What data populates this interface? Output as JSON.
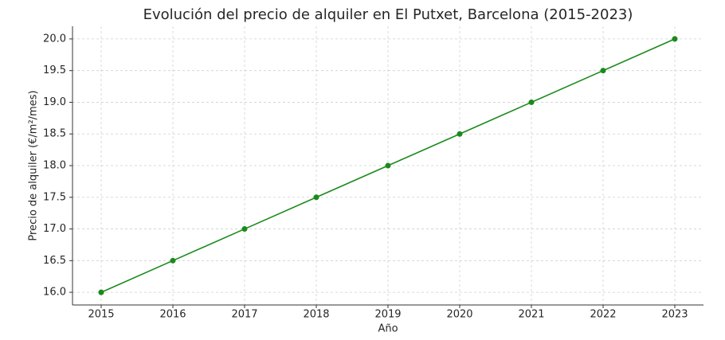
{
  "chart_data": {
    "type": "line",
    "title": "Evolución del precio de alquiler en El Putxet, Barcelona (2015-2023)",
    "x_label": "Año",
    "y_label": "Precio de alquiler (€/m²/mes)",
    "x": [
      2015,
      2016,
      2017,
      2018,
      2019,
      2020,
      2021,
      2022,
      2023
    ],
    "series": [
      {
        "color": "#1a8a1a",
        "values": [
          16.0,
          16.5,
          17.0,
          17.5,
          18.0,
          18.5,
          19.0,
          19.5,
          20.0
        ]
      }
    ],
    "xlim": [
      2014.6,
      2023.4
    ],
    "xticks": [
      2015,
      2016,
      2017,
      2018,
      2019,
      2020,
      2021,
      2022,
      2023
    ],
    "ylim": [
      15.8,
      20.2
    ],
    "yticks": [
      {
        "value": 16,
        "label": "16.0"
      },
      16.5,
      {
        "value": 17,
        "label": "17.0"
      },
      17.5,
      {
        "value": 18,
        "label": "18.0"
      },
      18.5,
      {
        "value": 19,
        "label": "19.0"
      },
      19.5,
      {
        "value": 20,
        "label": "20.0"
      }
    ],
    "grid": true
  }
}
